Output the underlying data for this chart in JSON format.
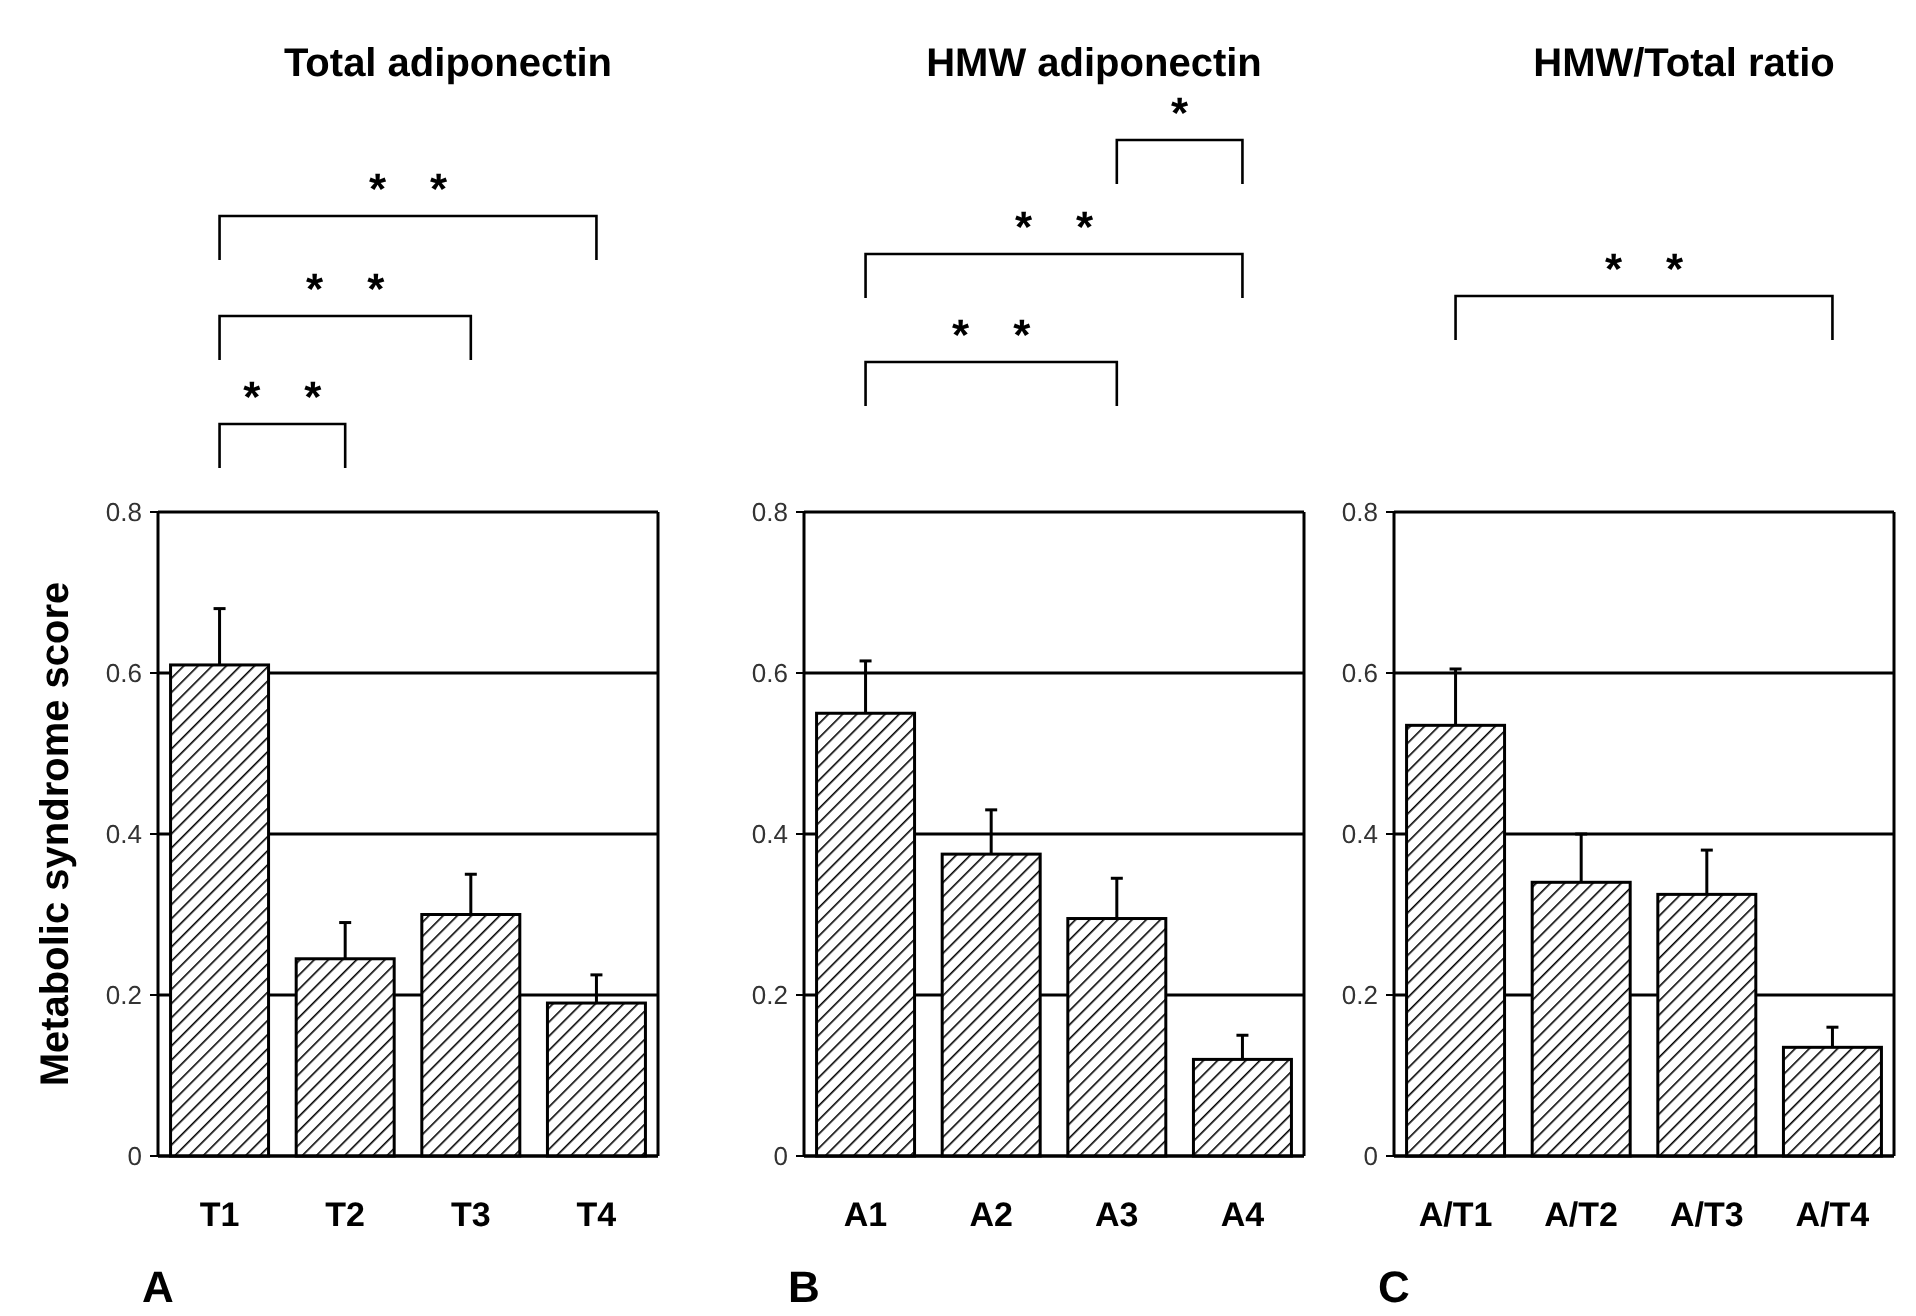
{
  "chart_data": [
    {
      "type": "bar",
      "title": "Total adiponectin",
      "ylabel": "Metabolic syndrome score",
      "categories": [
        "T1",
        "T2",
        "T3",
        "T4"
      ],
      "values": [
        0.61,
        0.245,
        0.3,
        0.19
      ],
      "errors": [
        [
          0.61,
          0.68
        ],
        [
          0.245,
          0.29
        ],
        [
          0.3,
          0.35
        ],
        [
          0.19,
          0.225
        ]
      ],
      "color": "#000000",
      "ylim": [
        0,
        0.8
      ],
      "yticks": [
        0,
        0.2,
        0.4,
        0.6,
        0.8
      ],
      "grid": "y",
      "annotations": [
        "A",
        "* *",
        "* *",
        "* *"
      ]
    },
    {
      "type": "bar",
      "title": "HMW adiponectin",
      "categories": [
        "A1",
        "A2",
        "A3",
        "A4"
      ],
      "values": [
        0.55,
        0.375,
        0.295,
        0.12
      ],
      "errors": [
        [
          0.55,
          0.615
        ],
        [
          0.375,
          0.43
        ],
        [
          0.295,
          0.345
        ],
        [
          0.12,
          0.15
        ]
      ],
      "color": "#000000",
      "ylim": [
        0,
        0.8
      ],
      "yticks": [
        0,
        0.2,
        0.4,
        0.6,
        0.8
      ],
      "grid": "y",
      "annotations": [
        "B",
        "* *",
        "* *",
        "*"
      ]
    },
    {
      "type": "bar",
      "title": "HMW/Total ratio",
      "categories": [
        "A/T1",
        "A/T2",
        "A/T3",
        "A/T4"
      ],
      "values": [
        0.535,
        0.34,
        0.325,
        0.135
      ],
      "errors": [
        [
          0.535,
          0.605
        ],
        [
          0.34,
          0.4
        ],
        [
          0.325,
          0.38
        ],
        [
          0.135,
          0.16
        ]
      ],
      "color": "#000000",
      "ylim": [
        0,
        0.8
      ],
      "yticks": [
        0,
        0.2,
        0.4,
        0.6,
        0.8
      ],
      "grid": "y",
      "annotations": [
        "C",
        "* *"
      ]
    }
  ]
}
